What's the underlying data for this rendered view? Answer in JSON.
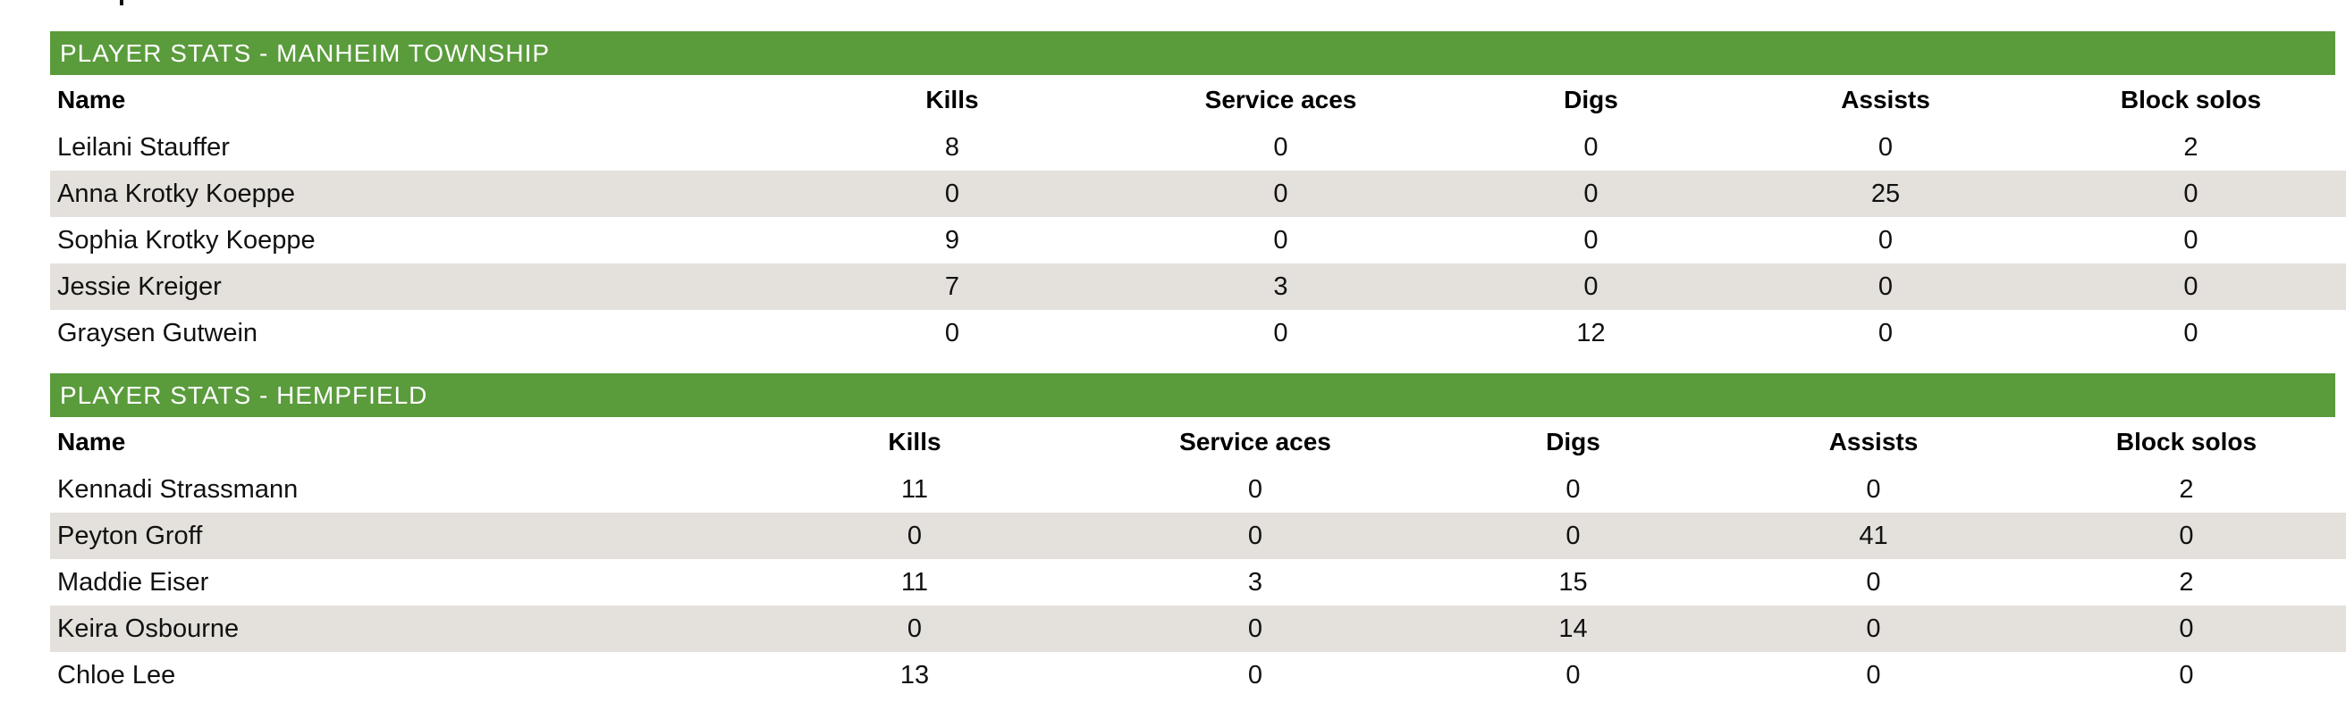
{
  "colors": {
    "banner_green": "#5A9B3C",
    "stripe_gray": "#E4E1DC",
    "banner_text": "#FFFFFF",
    "body_text": "#111111"
  },
  "tables": [
    {
      "title": "PLAYER STATS - MANHEIM TOWNSHIP",
      "columns": [
        "Name",
        "Kills",
        "Service aces",
        "Digs",
        "Assists",
        "Block solos"
      ],
      "rows": [
        [
          "Leilani Stauffer",
          "8",
          "0",
          "0",
          "0",
          "2"
        ],
        [
          "Anna Krotky Koeppe",
          "0",
          "0",
          "0",
          "25",
          "0"
        ],
        [
          "Sophia Krotky Koeppe",
          "9",
          "0",
          "0",
          "0",
          "0"
        ],
        [
          "Jessie Kreiger",
          "7",
          "3",
          "0",
          "0",
          "0"
        ],
        [
          "Graysen Gutwein",
          "0",
          "0",
          "12",
          "0",
          "0"
        ]
      ]
    },
    {
      "title": "PLAYER STATS - HEMPFIELD",
      "columns": [
        "Name",
        "Kills",
        "Service aces",
        "Digs",
        "Assists",
        "Block solos"
      ],
      "rows": [
        [
          "Kennadi Strassmann",
          "11",
          "0",
          "0",
          "0",
          "2"
        ],
        [
          "Peyton Groff",
          "0",
          "0",
          "0",
          "41",
          "0"
        ],
        [
          "Maddie Eiser",
          "11",
          "3",
          "15",
          "0",
          "2"
        ],
        [
          "Keira Osbourne",
          "0",
          "0",
          "14",
          "0",
          "0"
        ],
        [
          "Chloe Lee",
          "13",
          "0",
          "0",
          "0",
          "0"
        ]
      ]
    }
  ]
}
